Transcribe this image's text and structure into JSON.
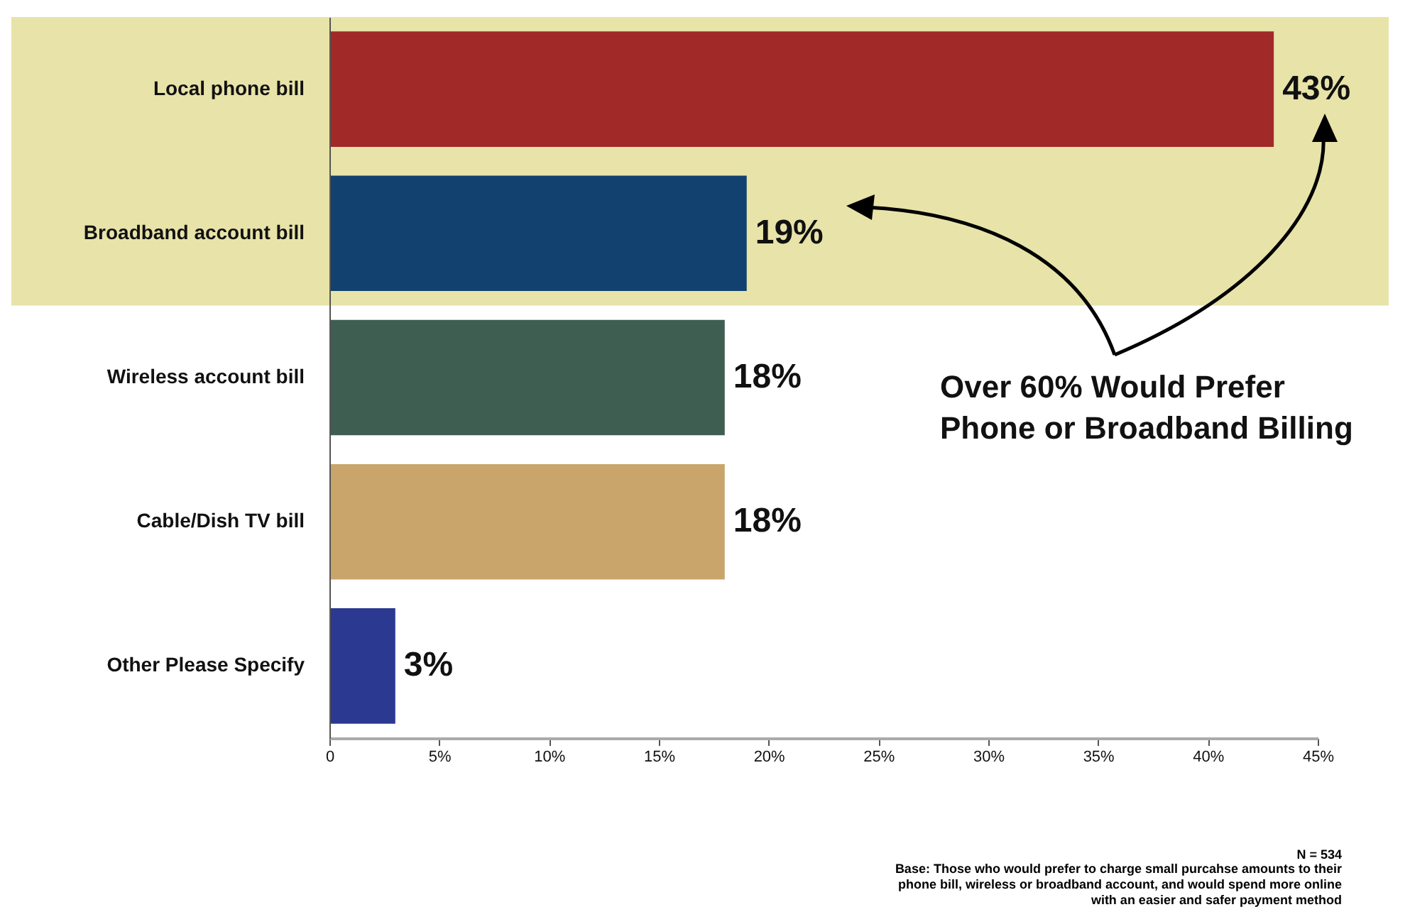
{
  "chart_data": {
    "type": "bar",
    "orientation": "horizontal",
    "categories": [
      "Local phone bill",
      "Broadband account bill",
      "Wireless account bill",
      "Cable/Dish TV bill",
      "Other Please Specify"
    ],
    "values": [
      43,
      19,
      18,
      18,
      3
    ],
    "colors": [
      "#a12a29",
      "#124170",
      "#3e5e52",
      "#c9a56c",
      "#2b3990"
    ],
    "data_labels": true,
    "value_labels": [
      "43%",
      "19%",
      "18%",
      "18%",
      "3%"
    ],
    "xlim": [
      0,
      45
    ],
    "xticks": [
      0,
      {
        "value": 5,
        "label": "5%"
      },
      {
        "value": 10,
        "label": "10%"
      },
      {
        "value": 15,
        "label": "15%"
      },
      {
        "value": 20,
        "label": "20%"
      },
      {
        "value": 25,
        "label": "25%"
      },
      {
        "value": 30,
        "label": "30%"
      },
      {
        "value": 35,
        "label": "35%"
      },
      {
        "value": 40,
        "label": "40%"
      },
      {
        "value": 45,
        "label": "45%"
      }
    ],
    "grid": false,
    "bands": [
      {
        "axis": "y",
        "from": "Local phone bill",
        "to": "Broadband account bill",
        "color": "#e8e3a8"
      }
    ],
    "annotations": [
      "Over 60% Would Prefer Phone or Broadband Billing",
      "N = 534",
      "Base: Those who would prefer to charge small purcahse amounts to their phone bill, wireless or broadband account, and would spend more online with an easier and safer payment method"
    ]
  }
}
